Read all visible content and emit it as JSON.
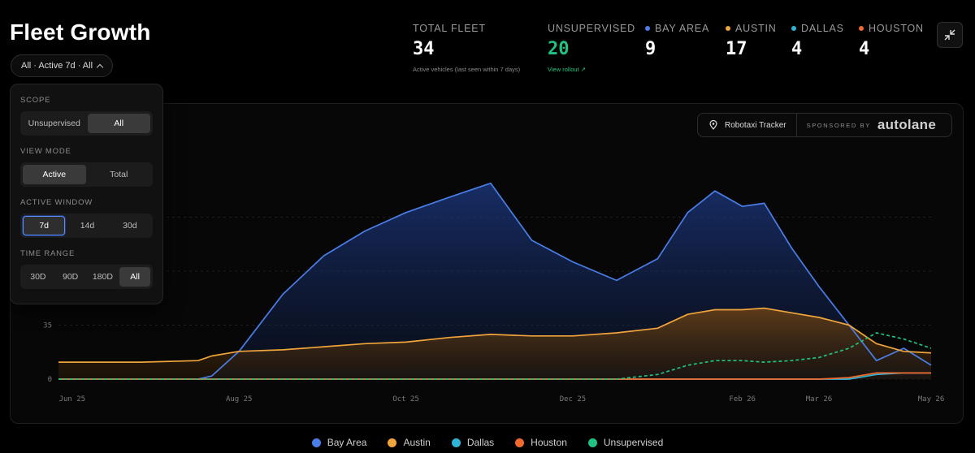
{
  "header": {
    "title": "Fleet Growth",
    "filter_label": "All · Active 7d · All"
  },
  "stats": {
    "total": {
      "label": "TOTAL FLEET",
      "value": "34",
      "sub": "Active vehicles (last seen within 7 days)"
    },
    "unsupervised": {
      "label": "UNSUPERVISED",
      "value": "20",
      "sub": "View rollout ↗"
    },
    "bay_area": {
      "label": "BAY AREA",
      "value": "9"
    },
    "austin": {
      "label": "AUSTIN",
      "value": "17"
    },
    "dallas": {
      "label": "DALLAS",
      "value": "4"
    },
    "houston": {
      "label": "HOUSTON",
      "value": "4"
    }
  },
  "tracker": {
    "name": "Robotaxi Tracker",
    "sponsored": "SPONSORED BY",
    "brand": "autolane"
  },
  "settings": {
    "scope": {
      "title": "SCOPE",
      "options": [
        "Unsupervised",
        "All"
      ],
      "selected": "All"
    },
    "view_mode": {
      "title": "VIEW MODE",
      "options": [
        "Active",
        "Total"
      ],
      "selected": "Active"
    },
    "active_window": {
      "title": "ACTIVE WINDOW",
      "options": [
        "7d",
        "14d",
        "30d"
      ],
      "selected": "7d"
    },
    "time_range": {
      "title": "TIME RANGE",
      "options": [
        "30D",
        "90D",
        "180D",
        "All"
      ],
      "selected": "All"
    }
  },
  "colors": {
    "bay_area": "#4a7ee6",
    "austin": "#f0a43c",
    "dallas": "#2fb4d6",
    "houston": "#f06a2d",
    "unsupervised": "#21c281"
  },
  "chart_data": {
    "type": "line",
    "x_ticks": [
      "Jun 25",
      "Aug 25",
      "Oct 25",
      "Dec 25",
      "Feb 26",
      "Mar 26",
      "May 26"
    ],
    "y_ticks": [
      "0",
      "35"
    ],
    "x": [
      "2025-06-20",
      "2025-07-20",
      "2025-08-10",
      "2025-08-15",
      "2025-08-25",
      "2025-09-10",
      "2025-09-25",
      "2025-10-10",
      "2025-10-25",
      "2025-11-10",
      "2025-11-25",
      "2025-12-10",
      "2025-12-25",
      "2026-01-10",
      "2026-01-25",
      "2026-02-05",
      "2026-02-15",
      "2026-02-25",
      "2026-03-05",
      "2026-03-15",
      "2026-03-25",
      "2026-04-05",
      "2026-04-15",
      "2026-04-25",
      "2026-05-05"
    ],
    "series": [
      {
        "name": "Bay Area",
        "values": [
          0,
          0,
          0,
          2,
          18,
          55,
          80,
          96,
          108,
          118,
          127,
          90,
          76,
          64,
          78,
          108,
          122,
          112,
          114,
          85,
          60,
          35,
          12,
          20,
          9
        ]
      },
      {
        "name": "Austin",
        "values": [
          11,
          11,
          12,
          15,
          18,
          19,
          21,
          23,
          24,
          27,
          29,
          28,
          28,
          30,
          33,
          42,
          45,
          45,
          46,
          43,
          40,
          35,
          23,
          18,
          17
        ]
      },
      {
        "name": "Dallas",
        "values": [
          0,
          0,
          0,
          0,
          0,
          0,
          0,
          0,
          0,
          0,
          0,
          0,
          0,
          0,
          0,
          0,
          0,
          0,
          0,
          0,
          0,
          0,
          3,
          4,
          4
        ]
      },
      {
        "name": "Houston",
        "values": [
          0,
          0,
          0,
          0,
          0,
          0,
          0,
          0,
          0,
          0,
          0,
          0,
          0,
          0,
          0,
          0,
          0,
          0,
          0,
          0,
          0,
          1,
          4,
          4,
          4
        ]
      },
      {
        "name": "Unsupervised",
        "values": [
          0,
          0,
          0,
          0,
          0,
          0,
          0,
          0,
          0,
          0,
          0,
          0,
          0,
          0,
          3,
          9,
          12,
          12,
          11,
          12,
          14,
          20,
          30,
          26,
          20
        ]
      }
    ],
    "legend": [
      "Bay Area",
      "Austin",
      "Dallas",
      "Houston",
      "Unsupervised"
    ],
    "legend_position": "bottom",
    "grid": true
  }
}
